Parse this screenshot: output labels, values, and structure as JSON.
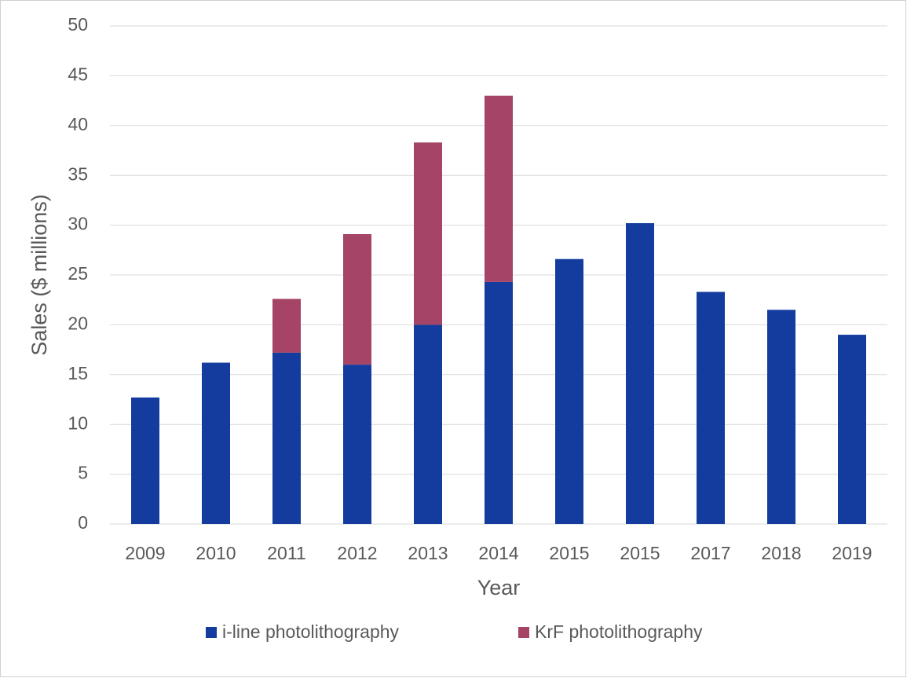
{
  "chart_data": {
    "type": "stacked_bar",
    "categories": [
      "2009",
      "2010",
      "2011",
      "2012",
      "2013",
      "2014",
      "2015",
      "2015",
      "2017",
      "2018",
      "2019"
    ],
    "series": [
      {
        "name": "i-line photolithography",
        "color": "#133c9e",
        "values": [
          12.7,
          16.2,
          17.2,
          16.0,
          20.0,
          24.3,
          26.6,
          30.2,
          23.3,
          21.5,
          19.0
        ]
      },
      {
        "name": "KrF photolithography",
        "color": "#a54466",
        "values": [
          null,
          null,
          5.4,
          13.1,
          18.3,
          18.7,
          null,
          null,
          null,
          null,
          null
        ]
      }
    ],
    "xlabel": "Year",
    "ylabel": "Sales ($ millions)",
    "ylim": [
      0,
      50
    ],
    "yticks": [
      0,
      5,
      10,
      15,
      20,
      25,
      30,
      35,
      40,
      45,
      50
    ],
    "grid": true,
    "legend": "bottom"
  }
}
